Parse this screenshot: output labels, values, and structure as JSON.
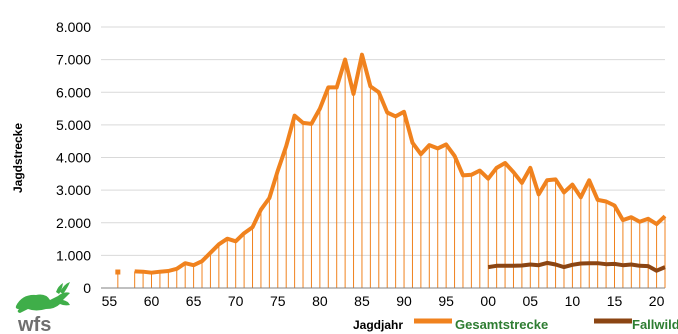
{
  "chart_data": {
    "type": "line",
    "xlabel": "Jagdjahr",
    "ylabel": "Jagdstrecke",
    "x_tick_labels": [
      "55",
      "60",
      "65",
      "70",
      "75",
      "80",
      "85",
      "90",
      "95",
      "00",
      "05",
      "10",
      "15",
      "20"
    ],
    "y_tick_labels": [
      "0",
      "1.000",
      "2.000",
      "3.000",
      "4.000",
      "5.000",
      "6.000",
      "7.000",
      "8.000"
    ],
    "ylim": [
      0,
      8000
    ],
    "xlim": [
      1954,
      2021
    ],
    "grid": true,
    "grid_lines": "horizontal",
    "legend_position": "bottom-right",
    "logo_text": "wfs",
    "series": [
      {
        "name": "Gesamtstrecke",
        "color": "#f0821e",
        "drop_lines": true,
        "points": [
          [
            1956,
            490
          ],
          [
            1958,
            510
          ],
          [
            1959,
            500
          ],
          [
            1960,
            470
          ],
          [
            1961,
            500
          ],
          [
            1962,
            520
          ],
          [
            1963,
            590
          ],
          [
            1964,
            760
          ],
          [
            1965,
            700
          ],
          [
            1966,
            820
          ],
          [
            1967,
            1080
          ],
          [
            1968,
            1340
          ],
          [
            1969,
            1510
          ],
          [
            1970,
            1430
          ],
          [
            1971,
            1680
          ],
          [
            1972,
            1860
          ],
          [
            1973,
            2400
          ],
          [
            1974,
            2760
          ],
          [
            1975,
            3600
          ],
          [
            1976,
            4350
          ],
          [
            1977,
            5280
          ],
          [
            1978,
            5060
          ],
          [
            1979,
            5030
          ],
          [
            1980,
            5500
          ],
          [
            1981,
            6150
          ],
          [
            1982,
            6150
          ],
          [
            1983,
            7000
          ],
          [
            1984,
            5950
          ],
          [
            1985,
            7150
          ],
          [
            1986,
            6180
          ],
          [
            1987,
            6000
          ],
          [
            1988,
            5380
          ],
          [
            1989,
            5260
          ],
          [
            1990,
            5400
          ],
          [
            1991,
            4450
          ],
          [
            1992,
            4100
          ],
          [
            1993,
            4380
          ],
          [
            1994,
            4280
          ],
          [
            1995,
            4400
          ],
          [
            1996,
            4050
          ],
          [
            1997,
            3450
          ],
          [
            1998,
            3470
          ],
          [
            1999,
            3600
          ],
          [
            2000,
            3350
          ],
          [
            2001,
            3680
          ],
          [
            2002,
            3830
          ],
          [
            2003,
            3550
          ],
          [
            2004,
            3220
          ],
          [
            2005,
            3680
          ],
          [
            2006,
            2870
          ],
          [
            2007,
            3300
          ],
          [
            2008,
            3330
          ],
          [
            2009,
            2930
          ],
          [
            2010,
            3170
          ],
          [
            2011,
            2780
          ],
          [
            2012,
            3300
          ],
          [
            2013,
            2700
          ],
          [
            2014,
            2650
          ],
          [
            2015,
            2530
          ],
          [
            2016,
            2080
          ],
          [
            2017,
            2170
          ],
          [
            2018,
            2030
          ],
          [
            2019,
            2120
          ],
          [
            2020,
            1960
          ],
          [
            2021,
            2200
          ]
        ]
      },
      {
        "name": "Fallwild",
        "color": "#8b4513",
        "drop_lines": false,
        "points": [
          [
            2000,
            640
          ],
          [
            2001,
            680
          ],
          [
            2002,
            680
          ],
          [
            2003,
            680
          ],
          [
            2004,
            690
          ],
          [
            2005,
            720
          ],
          [
            2006,
            700
          ],
          [
            2007,
            770
          ],
          [
            2008,
            720
          ],
          [
            2009,
            640
          ],
          [
            2010,
            710
          ],
          [
            2011,
            750
          ],
          [
            2012,
            760
          ],
          [
            2013,
            760
          ],
          [
            2014,
            730
          ],
          [
            2015,
            740
          ],
          [
            2016,
            700
          ],
          [
            2017,
            720
          ],
          [
            2018,
            680
          ],
          [
            2019,
            670
          ],
          [
            2020,
            530
          ],
          [
            2021,
            640
          ]
        ]
      }
    ]
  }
}
